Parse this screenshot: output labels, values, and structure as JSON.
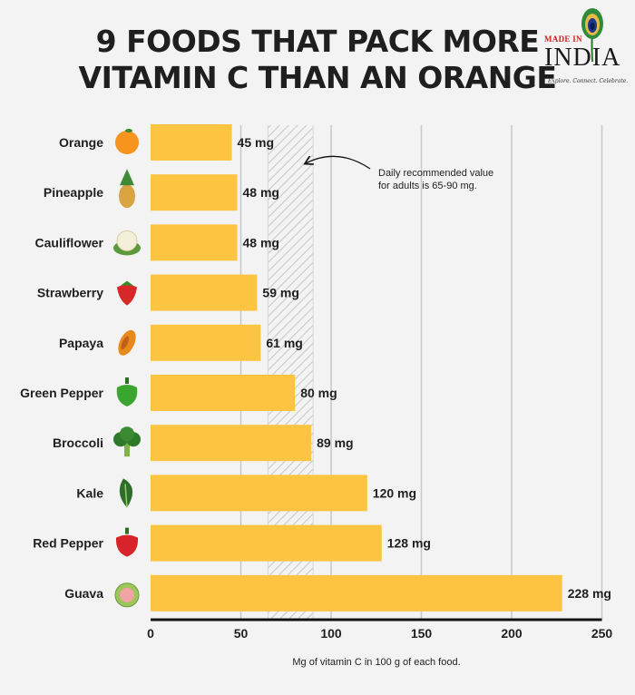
{
  "title_line1": "9 FOODS THAT PACK MORE",
  "title_line2": "VITAMIN C THAN AN ORANGE",
  "logo": {
    "top_text": "MADE IN",
    "main_text": "INDIA",
    "tagline": "Explore. Connect. Celebrate."
  },
  "annotation": {
    "line1": "Daily recommended value",
    "line2": "for adults is 65-90 mg."
  },
  "colors": {
    "bar": "#fcc440",
    "grid": "#c8c8c8",
    "band_stripe": "#c9c9c9",
    "axis": "#111111",
    "text": "#1f1f1f"
  },
  "chart_data": {
    "type": "bar",
    "orientation": "horizontal",
    "categories": [
      "Orange",
      "Pineapple",
      "Cauliflower",
      "Strawberry",
      "Papaya",
      "Green Pepper",
      "Broccoli",
      "Kale",
      "Red Pepper",
      "Guava"
    ],
    "values": [
      45,
      48,
      48,
      59,
      61,
      80,
      89,
      120,
      128,
      228
    ],
    "data_labels": [
      "45 mg",
      "48 mg",
      "48 mg",
      "59 mg",
      "61 mg",
      "80 mg",
      "89 mg",
      "120 mg",
      "128 mg",
      "228 mg"
    ],
    "icons": [
      "orange-icon",
      "pineapple-icon",
      "cauliflower-icon",
      "strawberry-icon",
      "papaya-icon",
      "green-pepper-icon",
      "broccoli-icon",
      "kale-icon",
      "red-pepper-icon",
      "guava-icon"
    ],
    "xlabel": "Mg of vitamin C in 100 g of each food.",
    "xlim": [
      0,
      250
    ],
    "xticks": [
      0,
      50,
      100,
      150,
      200,
      250
    ],
    "grid": true,
    "recommended_band": [
      65,
      90
    ]
  }
}
